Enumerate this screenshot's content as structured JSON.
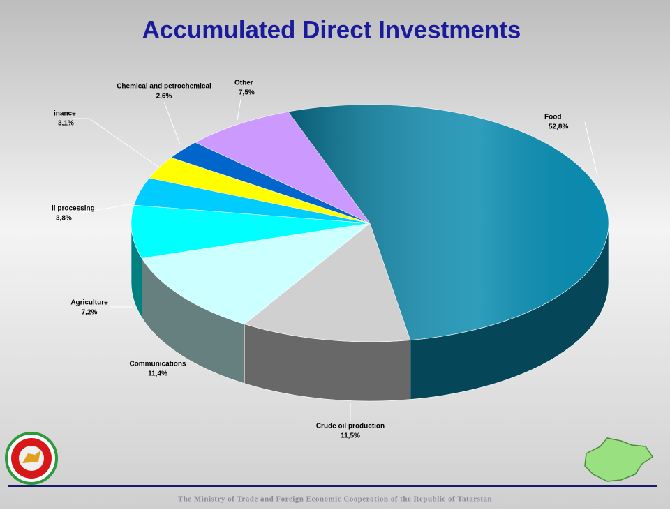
{
  "chart_data": {
    "type": "pie",
    "title": "Accumulated Direct Investments",
    "categories": [
      "Food",
      "Crude oil production",
      "Communications",
      "Agriculture",
      "il processing",
      "inance",
      "Chemical and petrochemical",
      "Other"
    ],
    "values": [
      52.8,
      11.5,
      11.4,
      7.2,
      3.8,
      3.1,
      2.6,
      7.5
    ],
    "value_labels": [
      "52,8%",
      "11,5%",
      "11,4%",
      "7,2%",
      "3,8%",
      "3,1%",
      "2,6%",
      "7,5%"
    ],
    "colors": [
      "#0a8cb0",
      "#d0d0d0",
      "#ccffff",
      "#00ffff",
      "#00ccff",
      "#ffff00",
      "#0066cc",
      "#cc99ff"
    ]
  },
  "footer": "The Ministry of Trade and Foreign Economic Cooperation of the Republic of Tatarstan"
}
